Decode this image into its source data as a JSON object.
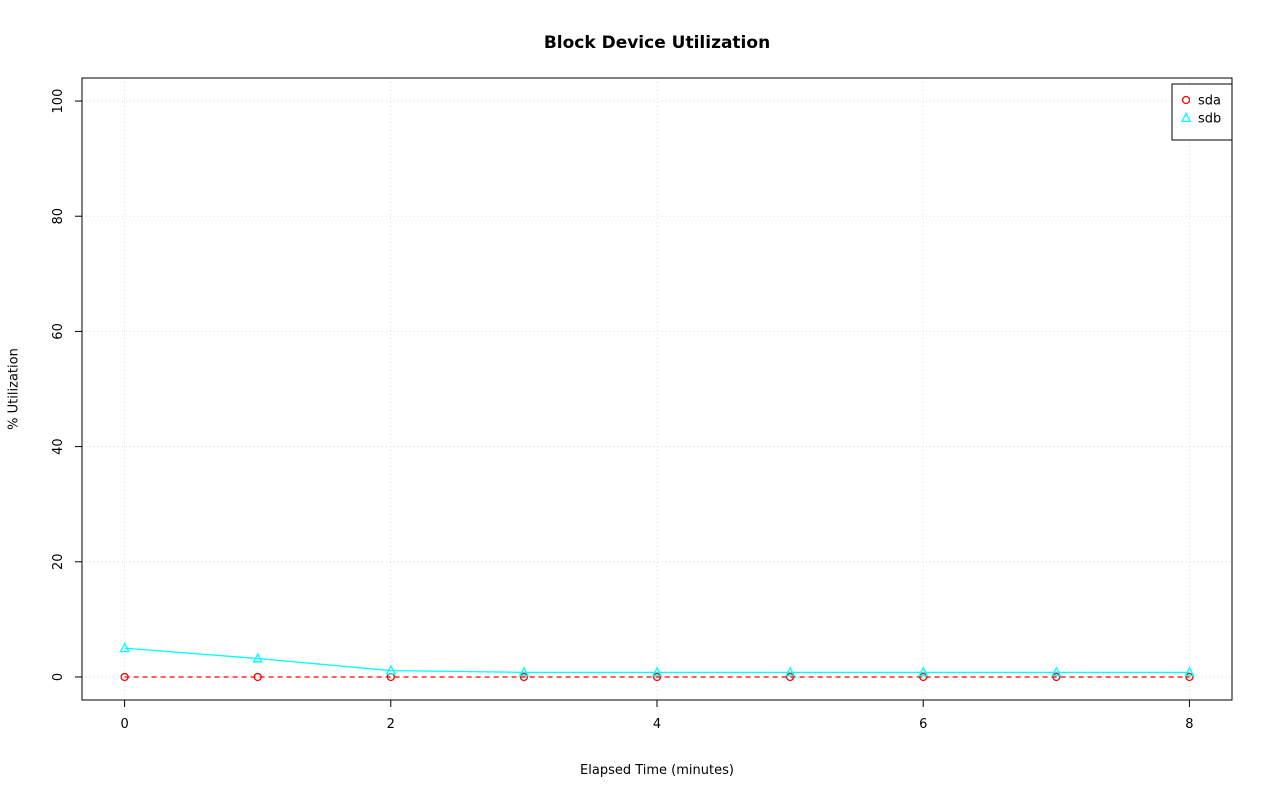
{
  "chart_data": {
    "type": "line",
    "title": "Block Device Utilization",
    "xlabel": "Elapsed Time (minutes)",
    "ylabel": "% Utilization",
    "x": [
      0,
      1,
      2,
      3,
      4,
      5,
      6,
      7,
      8
    ],
    "series": [
      {
        "name": "sda",
        "color": "#FF0000",
        "marker": "circle",
        "line_style": "dashed",
        "values": [
          0,
          0,
          0,
          0,
          0,
          0,
          0,
          0,
          0
        ]
      },
      {
        "name": "sdb",
        "color": "#00FFFF",
        "marker": "triangle",
        "line_style": "solid",
        "values": [
          5,
          3.2,
          1.1,
          0.8,
          0.8,
          0.8,
          0.8,
          0.8,
          0.8
        ]
      }
    ],
    "xlim": [
      0,
      8
    ],
    "ylim": [
      0,
      100
    ],
    "x_ticks": [
      0,
      2,
      4,
      6,
      8
    ],
    "y_ticks": [
      0,
      20,
      40,
      60,
      80,
      100
    ],
    "grid": true,
    "grid_color": "#D9D9D9",
    "axis_color": "#000000",
    "legend_position": "top-right"
  }
}
